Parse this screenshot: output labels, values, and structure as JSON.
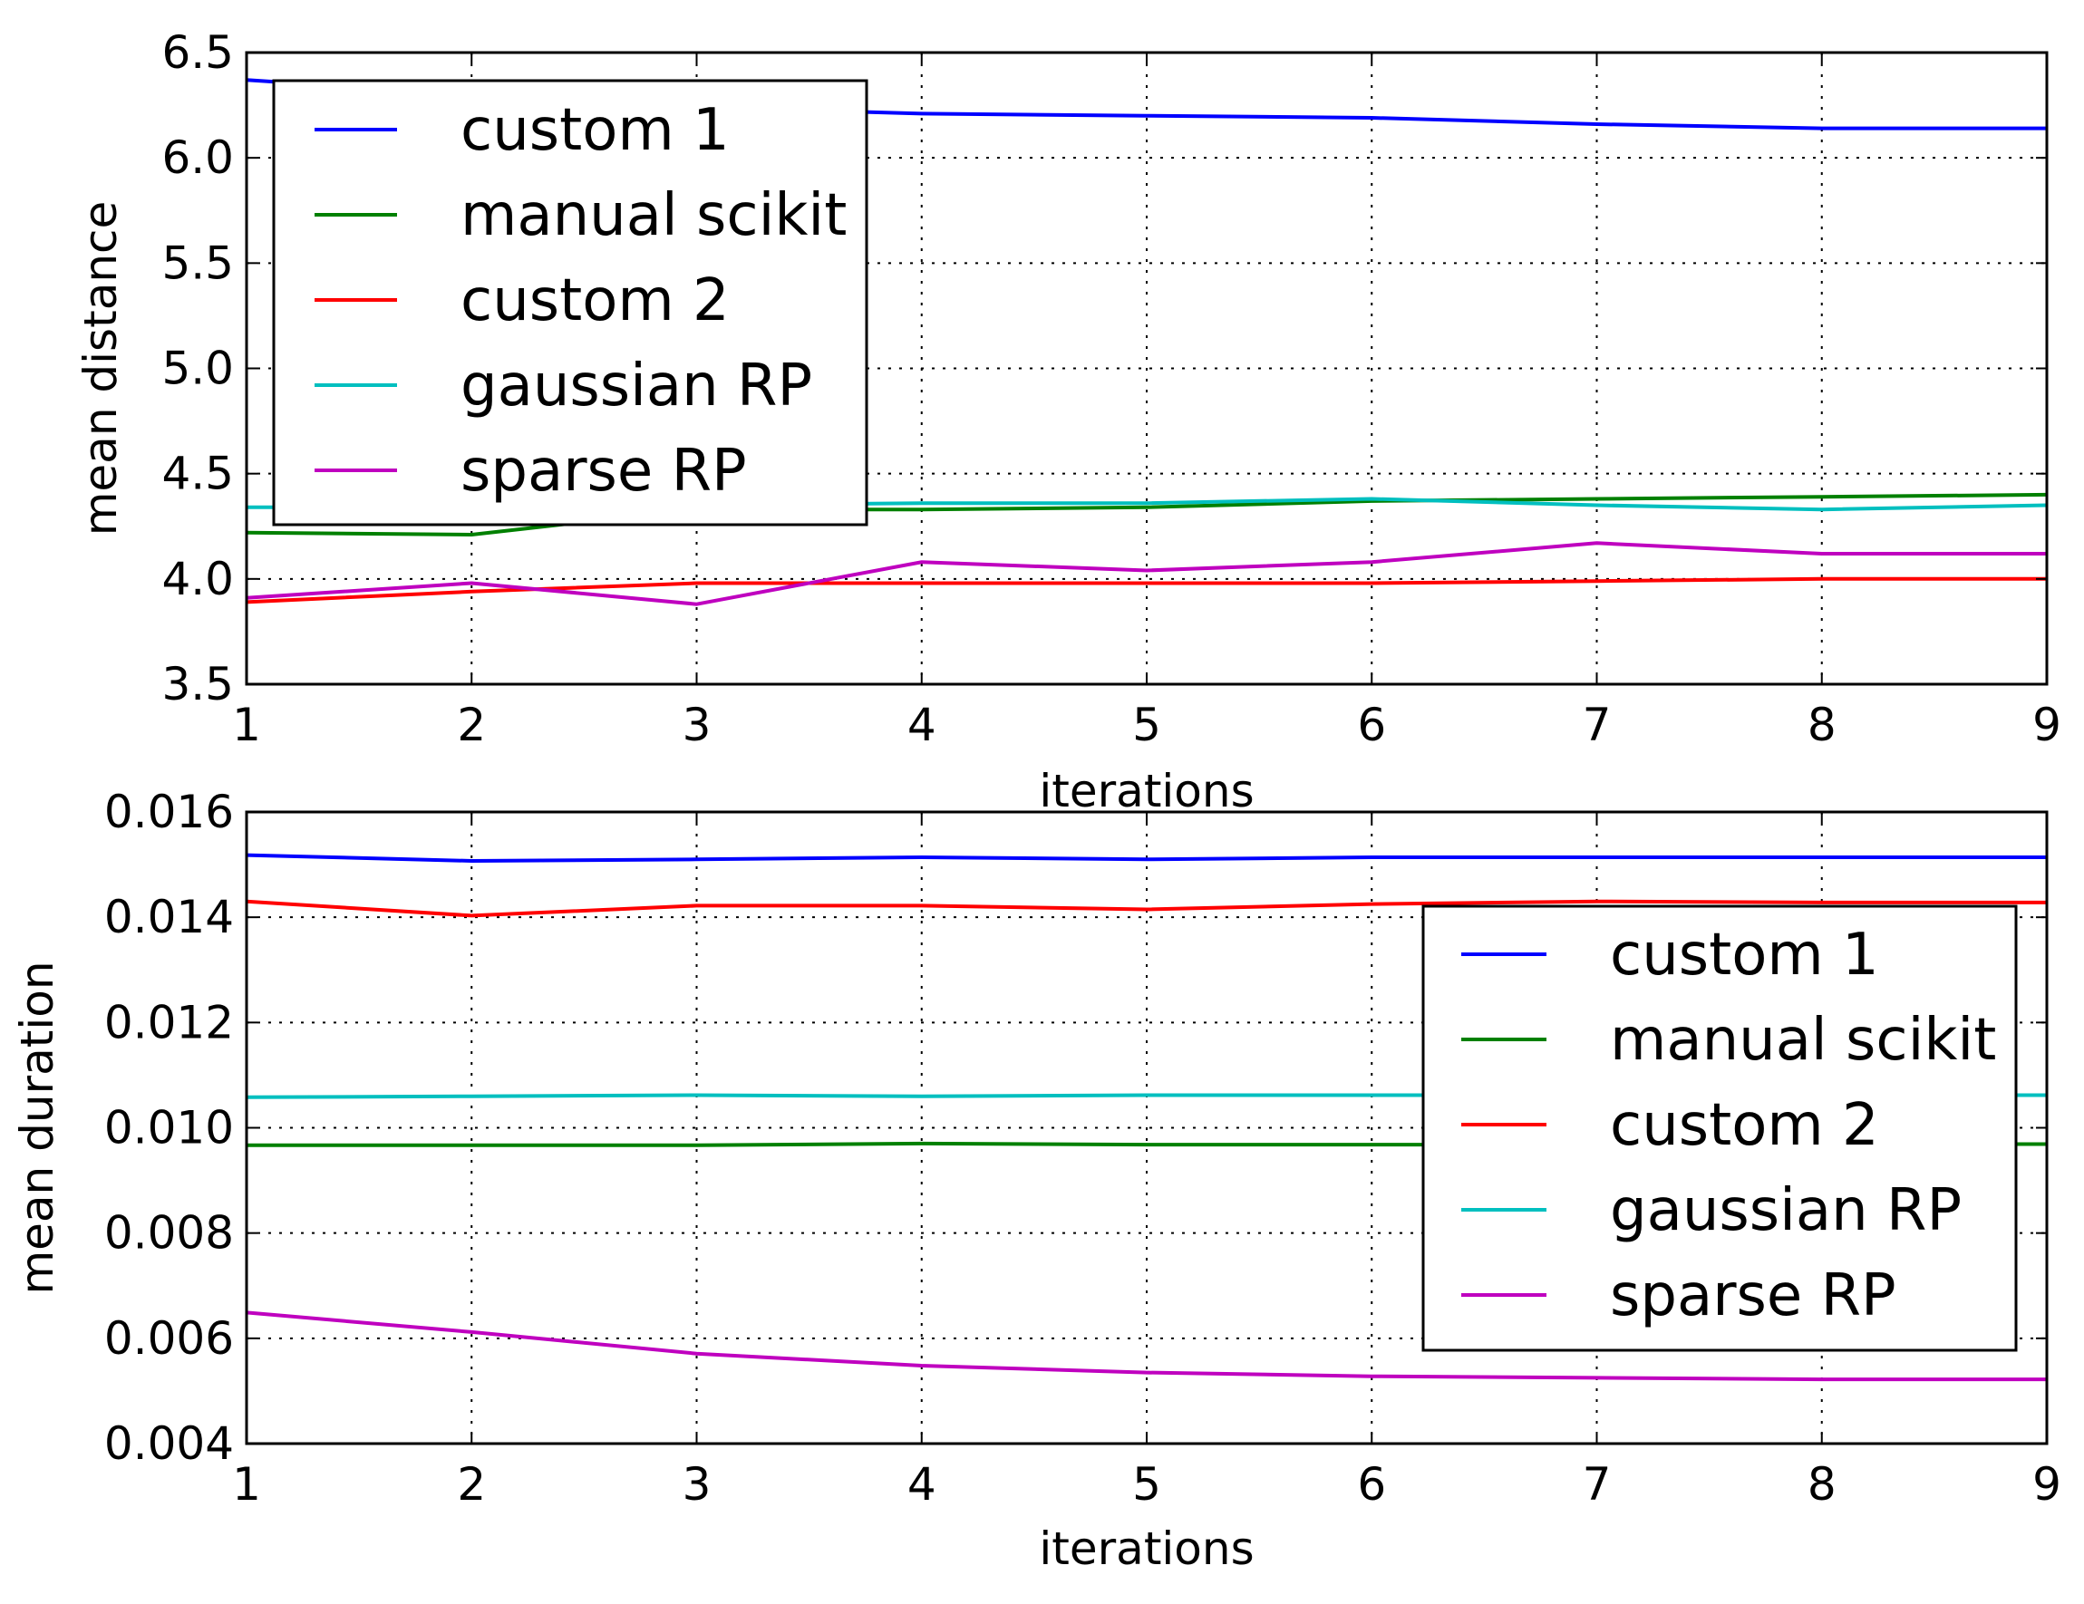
{
  "chart_data": [
    {
      "type": "line",
      "xlabel": "iterations",
      "ylabel": "mean distance",
      "xlim": [
        1,
        9
      ],
      "ylim": [
        3.5,
        6.5
      ],
      "x": [
        1,
        2,
        3,
        4,
        5,
        6,
        7,
        8,
        9
      ],
      "xticks": [
        "1",
        "2",
        "3",
        "4",
        "5",
        "6",
        "7",
        "8",
        "9"
      ],
      "yticks": [
        "3.5",
        "4.0",
        "4.5",
        "5.0",
        "5.5",
        "6.0",
        "6.5"
      ],
      "ytick_values": [
        3.5,
        4.0,
        4.5,
        5.0,
        5.5,
        6.0,
        6.5
      ],
      "grid": true,
      "legend_position": "top-left",
      "series": [
        {
          "name": "custom 1",
          "color": "#0000ff",
          "values": [
            6.37,
            6.3,
            6.24,
            6.21,
            6.2,
            6.19,
            6.16,
            6.14,
            6.14
          ]
        },
        {
          "name": "manual scikit",
          "color": "#008000",
          "values": [
            4.22,
            4.21,
            4.33,
            4.33,
            4.34,
            4.37,
            4.38,
            4.39,
            4.4
          ]
        },
        {
          "name": "custom 2",
          "color": "#ff0000",
          "values": [
            3.89,
            3.94,
            3.98,
            3.98,
            3.98,
            3.98,
            3.99,
            4.0,
            4.0
          ]
        },
        {
          "name": "gaussian RP",
          "color": "#00bfbf",
          "values": [
            4.34,
            4.34,
            4.35,
            4.36,
            4.36,
            4.38,
            4.35,
            4.33,
            4.35
          ]
        },
        {
          "name": "sparse RP",
          "color": "#bf00bf",
          "values": [
            3.91,
            3.98,
            3.88,
            4.08,
            4.04,
            4.08,
            4.17,
            4.12,
            4.12
          ]
        }
      ]
    },
    {
      "type": "line",
      "xlabel": "iterations",
      "ylabel": "mean duration",
      "xlim": [
        1,
        9
      ],
      "ylim": [
        0.004,
        0.016
      ],
      "x": [
        1,
        2,
        3,
        4,
        5,
        6,
        7,
        8,
        9
      ],
      "xticks": [
        "1",
        "2",
        "3",
        "4",
        "5",
        "6",
        "7",
        "8",
        "9"
      ],
      "yticks": [
        "0.004",
        "0.006",
        "0.008",
        "0.010",
        "0.012",
        "0.014",
        "0.016"
      ],
      "ytick_values": [
        0.004,
        0.006,
        0.008,
        0.01,
        0.012,
        0.014,
        0.016
      ],
      "grid": true,
      "legend_position": "center-right",
      "series": [
        {
          "name": "custom 1",
          "color": "#0000ff",
          "values": [
            0.01518,
            0.01507,
            0.0151,
            0.01514,
            0.0151,
            0.01514,
            0.01514,
            0.01514,
            0.01514
          ]
        },
        {
          "name": "manual scikit",
          "color": "#008000",
          "values": [
            0.00967,
            0.00967,
            0.00967,
            0.0097,
            0.00968,
            0.00968,
            0.00968,
            0.00969,
            0.00969
          ]
        },
        {
          "name": "custom 2",
          "color": "#ff0000",
          "values": [
            0.0143,
            0.01403,
            0.01422,
            0.01422,
            0.01415,
            0.01425,
            0.0143,
            0.01428,
            0.01428
          ]
        },
        {
          "name": "gaussian RP",
          "color": "#00bfbf",
          "values": [
            0.01058,
            0.0106,
            0.01062,
            0.0106,
            0.01062,
            0.01062,
            0.01062,
            0.01062,
            0.01062
          ]
        },
        {
          "name": "sparse RP",
          "color": "#bf00bf",
          "values": [
            0.00649,
            0.00612,
            0.00571,
            0.00548,
            0.00535,
            0.00528,
            0.00525,
            0.00522,
            0.00522
          ]
        }
      ]
    }
  ]
}
